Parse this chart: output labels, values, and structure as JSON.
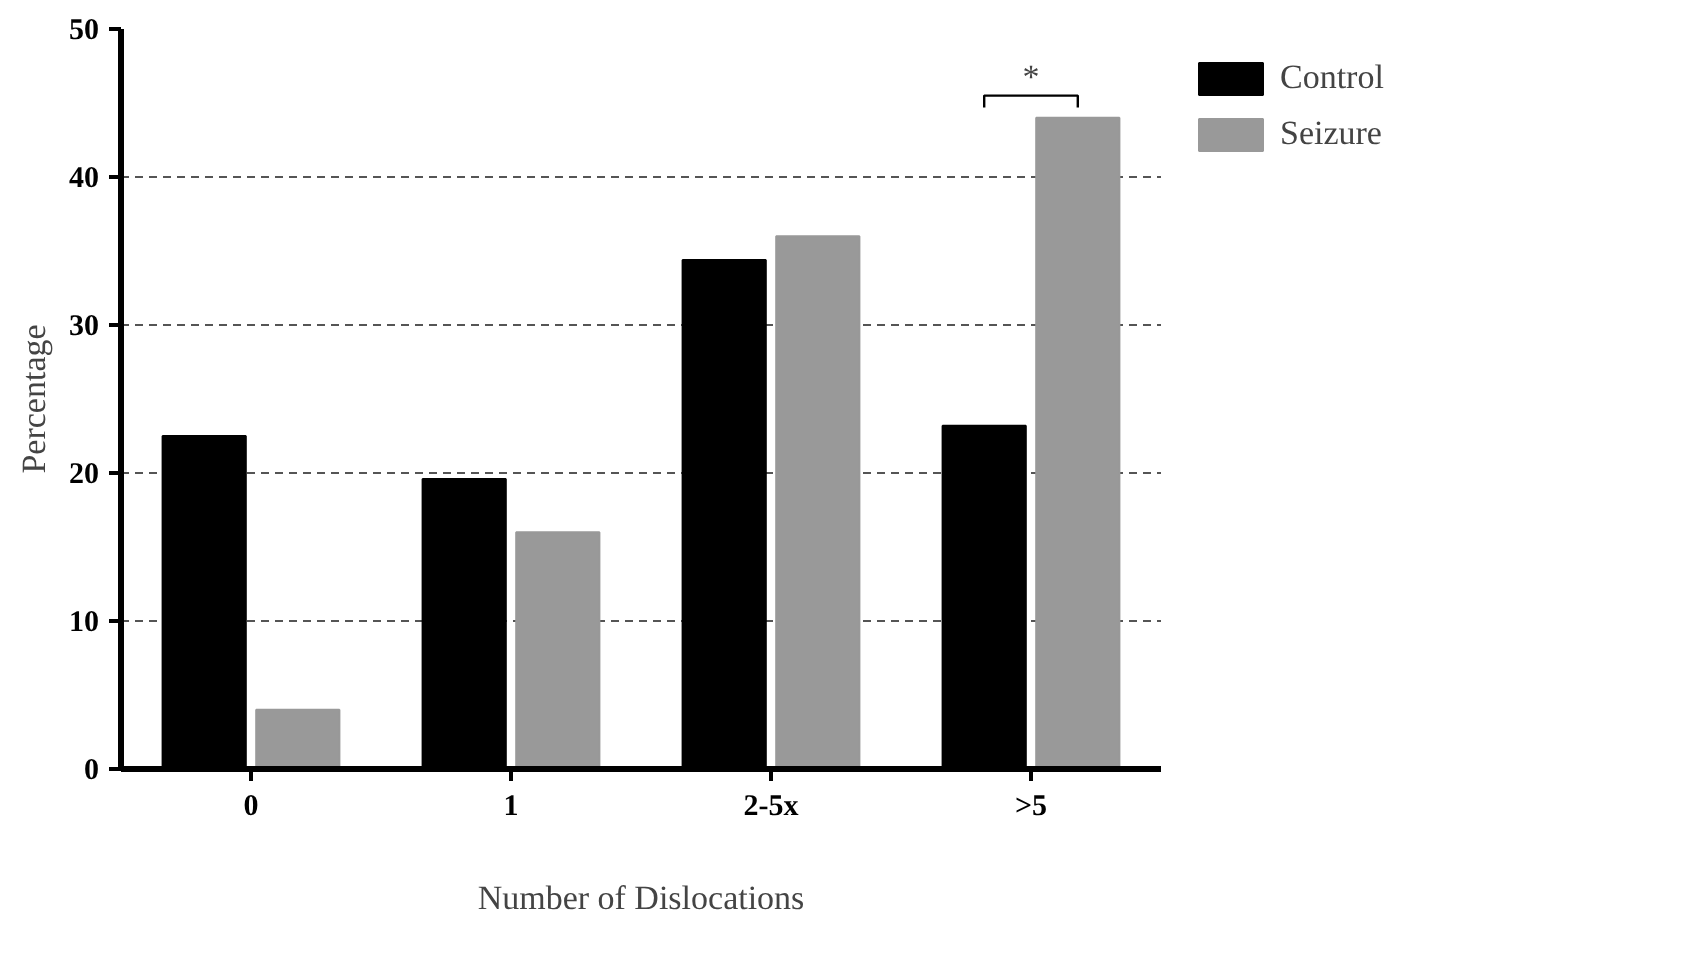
{
  "chart_data": {
    "type": "bar",
    "xlabel": "Number of Dislocations",
    "ylabel": "Percentage",
    "categories": [
      "0",
      "1",
      "2-5x",
      ">5"
    ],
    "series": [
      {
        "name": "Control",
        "color": "#000000",
        "values": [
          22.5,
          19.6,
          34.4,
          23.2
        ]
      },
      {
        "name": "Seizure",
        "color": "#999999",
        "values": [
          4.0,
          16.0,
          36.0,
          44.0
        ]
      }
    ],
    "ylim": [
      0,
      50
    ],
    "yticks": [
      0,
      10,
      20,
      30,
      40,
      50
    ],
    "grid": "y",
    "legend": "top right",
    "annotations": [
      "*"
    ]
  }
}
